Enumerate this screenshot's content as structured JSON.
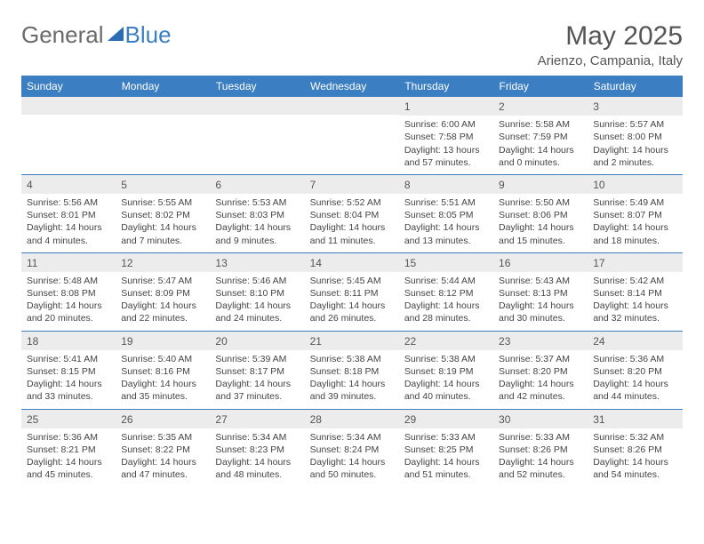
{
  "logo": {
    "text1": "General",
    "text2": "Blue"
  },
  "header": {
    "month": "May 2025",
    "location": "Arienzo, Campania, Italy"
  },
  "dayNames": [
    "Sunday",
    "Monday",
    "Tuesday",
    "Wednesday",
    "Thursday",
    "Friday",
    "Saturday"
  ],
  "colors": {
    "accent": "#3b7ec2",
    "dayrow": "#ececec"
  },
  "weeks": [
    [
      {
        "n": "",
        "sr": "",
        "ss": "",
        "dl": ""
      },
      {
        "n": "",
        "sr": "",
        "ss": "",
        "dl": ""
      },
      {
        "n": "",
        "sr": "",
        "ss": "",
        "dl": ""
      },
      {
        "n": "",
        "sr": "",
        "ss": "",
        "dl": ""
      },
      {
        "n": "1",
        "sr": "Sunrise: 6:00 AM",
        "ss": "Sunset: 7:58 PM",
        "dl": "Daylight: 13 hours and 57 minutes."
      },
      {
        "n": "2",
        "sr": "Sunrise: 5:58 AM",
        "ss": "Sunset: 7:59 PM",
        "dl": "Daylight: 14 hours and 0 minutes."
      },
      {
        "n": "3",
        "sr": "Sunrise: 5:57 AM",
        "ss": "Sunset: 8:00 PM",
        "dl": "Daylight: 14 hours and 2 minutes."
      }
    ],
    [
      {
        "n": "4",
        "sr": "Sunrise: 5:56 AM",
        "ss": "Sunset: 8:01 PM",
        "dl": "Daylight: 14 hours and 4 minutes."
      },
      {
        "n": "5",
        "sr": "Sunrise: 5:55 AM",
        "ss": "Sunset: 8:02 PM",
        "dl": "Daylight: 14 hours and 7 minutes."
      },
      {
        "n": "6",
        "sr": "Sunrise: 5:53 AM",
        "ss": "Sunset: 8:03 PM",
        "dl": "Daylight: 14 hours and 9 minutes."
      },
      {
        "n": "7",
        "sr": "Sunrise: 5:52 AM",
        "ss": "Sunset: 8:04 PM",
        "dl": "Daylight: 14 hours and 11 minutes."
      },
      {
        "n": "8",
        "sr": "Sunrise: 5:51 AM",
        "ss": "Sunset: 8:05 PM",
        "dl": "Daylight: 14 hours and 13 minutes."
      },
      {
        "n": "9",
        "sr": "Sunrise: 5:50 AM",
        "ss": "Sunset: 8:06 PM",
        "dl": "Daylight: 14 hours and 15 minutes."
      },
      {
        "n": "10",
        "sr": "Sunrise: 5:49 AM",
        "ss": "Sunset: 8:07 PM",
        "dl": "Daylight: 14 hours and 18 minutes."
      }
    ],
    [
      {
        "n": "11",
        "sr": "Sunrise: 5:48 AM",
        "ss": "Sunset: 8:08 PM",
        "dl": "Daylight: 14 hours and 20 minutes."
      },
      {
        "n": "12",
        "sr": "Sunrise: 5:47 AM",
        "ss": "Sunset: 8:09 PM",
        "dl": "Daylight: 14 hours and 22 minutes."
      },
      {
        "n": "13",
        "sr": "Sunrise: 5:46 AM",
        "ss": "Sunset: 8:10 PM",
        "dl": "Daylight: 14 hours and 24 minutes."
      },
      {
        "n": "14",
        "sr": "Sunrise: 5:45 AM",
        "ss": "Sunset: 8:11 PM",
        "dl": "Daylight: 14 hours and 26 minutes."
      },
      {
        "n": "15",
        "sr": "Sunrise: 5:44 AM",
        "ss": "Sunset: 8:12 PM",
        "dl": "Daylight: 14 hours and 28 minutes."
      },
      {
        "n": "16",
        "sr": "Sunrise: 5:43 AM",
        "ss": "Sunset: 8:13 PM",
        "dl": "Daylight: 14 hours and 30 minutes."
      },
      {
        "n": "17",
        "sr": "Sunrise: 5:42 AM",
        "ss": "Sunset: 8:14 PM",
        "dl": "Daylight: 14 hours and 32 minutes."
      }
    ],
    [
      {
        "n": "18",
        "sr": "Sunrise: 5:41 AM",
        "ss": "Sunset: 8:15 PM",
        "dl": "Daylight: 14 hours and 33 minutes."
      },
      {
        "n": "19",
        "sr": "Sunrise: 5:40 AM",
        "ss": "Sunset: 8:16 PM",
        "dl": "Daylight: 14 hours and 35 minutes."
      },
      {
        "n": "20",
        "sr": "Sunrise: 5:39 AM",
        "ss": "Sunset: 8:17 PM",
        "dl": "Daylight: 14 hours and 37 minutes."
      },
      {
        "n": "21",
        "sr": "Sunrise: 5:38 AM",
        "ss": "Sunset: 8:18 PM",
        "dl": "Daylight: 14 hours and 39 minutes."
      },
      {
        "n": "22",
        "sr": "Sunrise: 5:38 AM",
        "ss": "Sunset: 8:19 PM",
        "dl": "Daylight: 14 hours and 40 minutes."
      },
      {
        "n": "23",
        "sr": "Sunrise: 5:37 AM",
        "ss": "Sunset: 8:20 PM",
        "dl": "Daylight: 14 hours and 42 minutes."
      },
      {
        "n": "24",
        "sr": "Sunrise: 5:36 AM",
        "ss": "Sunset: 8:20 PM",
        "dl": "Daylight: 14 hours and 44 minutes."
      }
    ],
    [
      {
        "n": "25",
        "sr": "Sunrise: 5:36 AM",
        "ss": "Sunset: 8:21 PM",
        "dl": "Daylight: 14 hours and 45 minutes."
      },
      {
        "n": "26",
        "sr": "Sunrise: 5:35 AM",
        "ss": "Sunset: 8:22 PM",
        "dl": "Daylight: 14 hours and 47 minutes."
      },
      {
        "n": "27",
        "sr": "Sunrise: 5:34 AM",
        "ss": "Sunset: 8:23 PM",
        "dl": "Daylight: 14 hours and 48 minutes."
      },
      {
        "n": "28",
        "sr": "Sunrise: 5:34 AM",
        "ss": "Sunset: 8:24 PM",
        "dl": "Daylight: 14 hours and 50 minutes."
      },
      {
        "n": "29",
        "sr": "Sunrise: 5:33 AM",
        "ss": "Sunset: 8:25 PM",
        "dl": "Daylight: 14 hours and 51 minutes."
      },
      {
        "n": "30",
        "sr": "Sunrise: 5:33 AM",
        "ss": "Sunset: 8:26 PM",
        "dl": "Daylight: 14 hours and 52 minutes."
      },
      {
        "n": "31",
        "sr": "Sunrise: 5:32 AM",
        "ss": "Sunset: 8:26 PM",
        "dl": "Daylight: 14 hours and 54 minutes."
      }
    ]
  ]
}
